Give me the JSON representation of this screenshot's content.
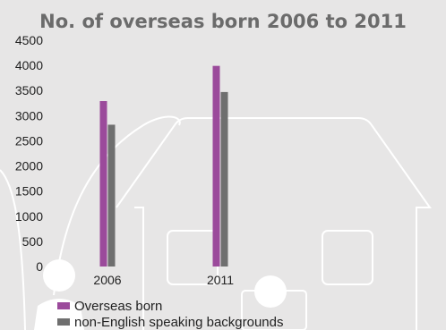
{
  "chart_data": {
    "type": "bar",
    "title": "No. of overseas born 2006 to 2011",
    "xlabel": "",
    "ylabel": "",
    "categories": [
      "2006",
      "2011"
    ],
    "series": [
      {
        "name": "Overseas born",
        "values": [
          3290,
          3990
        ],
        "color": "#9b4a9b"
      },
      {
        "name": "non-English speaking backgrounds",
        "values": [
          2820,
          3470
        ],
        "color": "#6f6f6f"
      }
    ],
    "ylim": [
      0,
      4500
    ],
    "yticks": [
      0,
      500,
      1000,
      1500,
      2000,
      2500,
      3000,
      3500,
      4000,
      4500
    ],
    "grid": false,
    "legend_position": "bottom-left"
  }
}
